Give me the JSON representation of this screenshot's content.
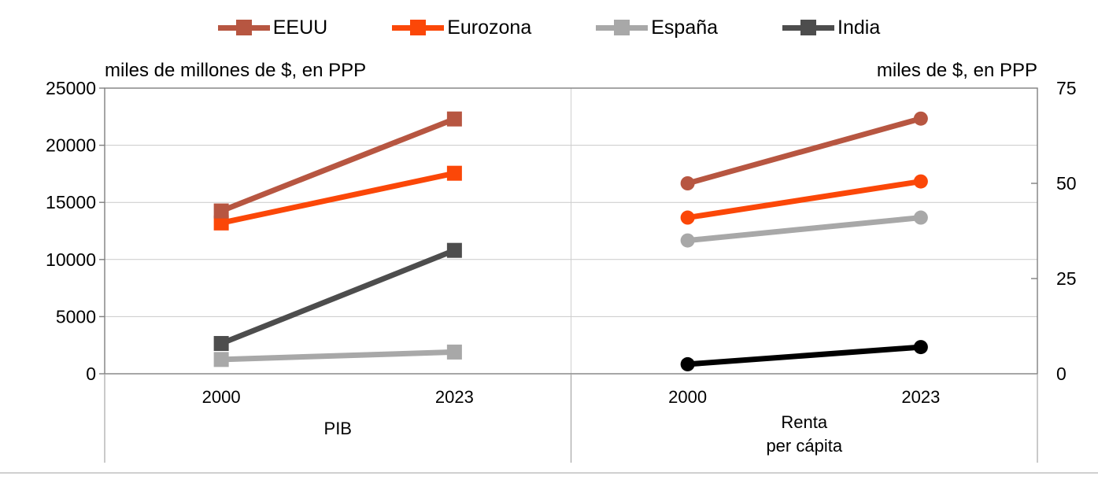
{
  "legend": {
    "items": [
      {
        "label": "EEUU",
        "color": "#B75641"
      },
      {
        "label": "Eurozona",
        "color": "#FB4708"
      },
      {
        "label": "España",
        "color": "#A8A8A8"
      },
      {
        "label": "India",
        "color": "#4D4D4D"
      }
    ]
  },
  "chart_data": {
    "type": "line",
    "title": "",
    "grid": "horizontal",
    "legend_position": "top-center",
    "x_categories": [
      "2000",
      "2023"
    ],
    "panels": [
      {
        "id": "pib",
        "label_lines": [
          "PIB"
        ],
        "axis_title": "miles de millones de $, en PPP",
        "axis_side": "left",
        "ylim": [
          0,
          25000
        ],
        "yticks": [
          0,
          5000,
          10000,
          15000,
          20000,
          25000
        ],
        "tick_marks": [
          0,
          5000,
          10000,
          15000,
          20000,
          25000
        ],
        "marker": "square",
        "series": [
          {
            "name": "España",
            "color": "#A8A8A8",
            "values": [
              1250,
              1900
            ]
          },
          {
            "name": "India",
            "color": "#4D4D4D",
            "values": [
              2650,
              10800
            ]
          },
          {
            "name": "Eurozona",
            "color": "#FB4708",
            "values": [
              13200,
              17550
            ]
          },
          {
            "name": "EEUU",
            "color": "#B75641",
            "values": [
              14250,
              22300
            ]
          }
        ]
      },
      {
        "id": "renta-per-capita",
        "label_lines": [
          "Renta",
          "per cápita"
        ],
        "axis_title": "miles de $, en PPP",
        "axis_side": "right",
        "ylim": [
          0,
          75
        ],
        "yticks": [
          0,
          25,
          50,
          75
        ],
        "tick_marks": [
          25,
          50
        ],
        "marker": "circle",
        "series": [
          {
            "name": "España",
            "color": "#A8A8A8",
            "values": [
              35,
              41
            ]
          },
          {
            "name": "India",
            "color": "#000000",
            "values": [
              2.5,
              7
            ]
          },
          {
            "name": "Eurozona",
            "color": "#FB4708",
            "values": [
              41,
              50.5
            ]
          },
          {
            "name": "EEUU",
            "color": "#B75641",
            "values": [
              50,
              67
            ]
          }
        ]
      }
    ],
    "colors": {
      "gridline": "#C9C9C9",
      "border": "#7F7F7F",
      "below_axis_lines": "#A6A6A6",
      "bottom_rule": "#C0C0C0",
      "panel_divider": "#CFCFCF"
    }
  }
}
